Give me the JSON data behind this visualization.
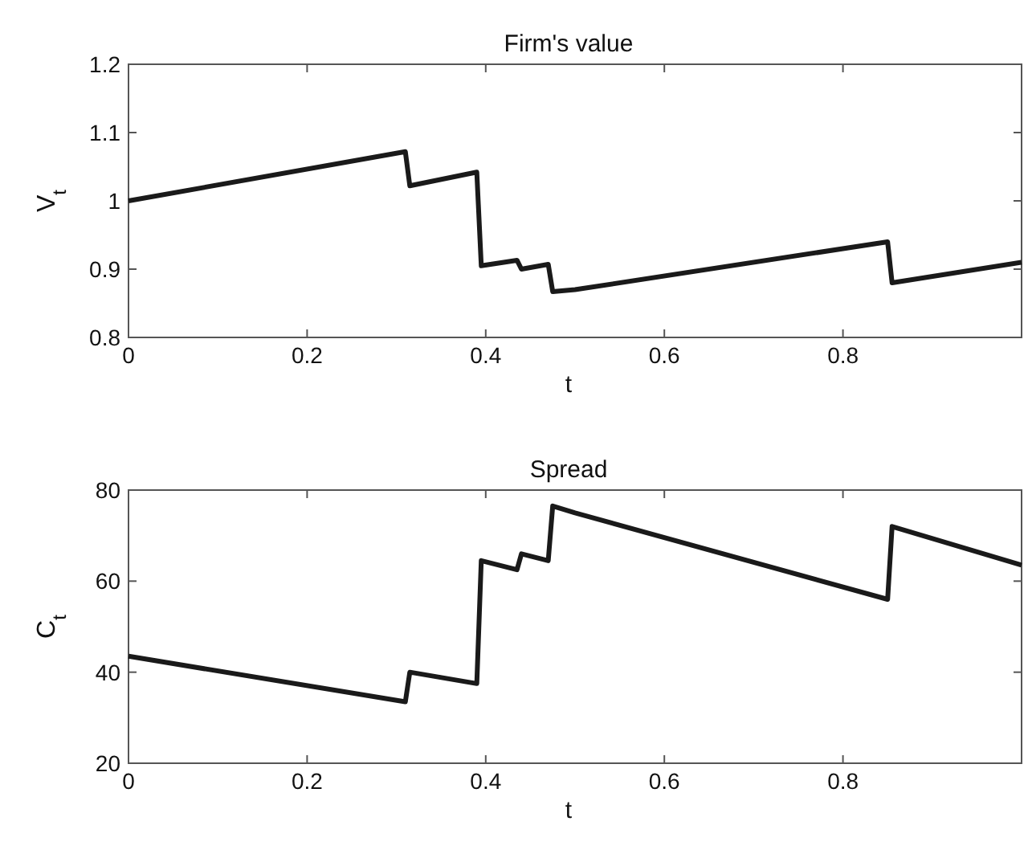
{
  "chart_data": [
    {
      "type": "line",
      "title": "Firm's value",
      "xlabel": "t",
      "ylabel": "V$_{t}$",
      "xlim": [
        0,
        1
      ],
      "xticks": [
        0,
        0.2,
        0.4,
        0.6,
        0.8
      ],
      "ylim": [
        0.8,
        1.2
      ],
      "yticks": [
        0.8,
        0.9,
        1,
        1.1,
        1.2
      ],
      "grid": false,
      "marker": "none",
      "line_style": "solid",
      "series": [
        {
          "color": "#1a1a1a",
          "x": [
            0,
            0.31,
            0.315,
            0.39,
            0.395,
            0.435,
            0.44,
            0.47,
            0.475,
            0.5,
            0.85,
            0.855,
            1
          ],
          "values": [
            1.0,
            1.072,
            1.022,
            1.042,
            0.905,
            0.913,
            0.9,
            0.907,
            0.867,
            0.87,
            0.94,
            0.88,
            0.91
          ]
        }
      ]
    },
    {
      "type": "line",
      "title": "Spread",
      "xlabel": "t",
      "ylabel": "C$_{t}$",
      "xlim": [
        0,
        1
      ],
      "xticks": [
        0,
        0.2,
        0.4,
        0.6,
        0.8
      ],
      "ylim": [
        20,
        80
      ],
      "yticks": [
        20,
        40,
        60,
        80
      ],
      "grid": false,
      "marker": "none",
      "line_style": "solid",
      "series": [
        {
          "color": "#1a1a1a",
          "x": [
            0,
            0.31,
            0.315,
            0.39,
            0.395,
            0.435,
            0.44,
            0.47,
            0.475,
            0.5,
            0.85,
            0.855,
            1
          ],
          "values": [
            43.5,
            33.5,
            40,
            37.5,
            64.5,
            62.5,
            66,
            64.5,
            76.5,
            75,
            56,
            72,
            63.5
          ]
        }
      ]
    }
  ]
}
